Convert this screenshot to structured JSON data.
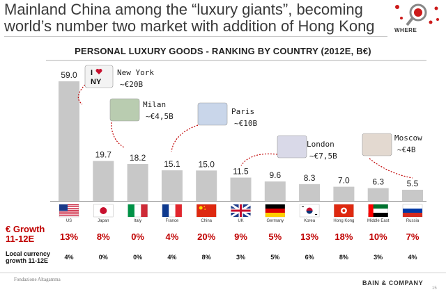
{
  "headline": "Mainland China among the “luxury giants”, becoming world’s number two market with addition of Hong Kong",
  "where_label": "WHERE",
  "labels": {
    "growth": "€ Growth 11-12E",
    "local_growth": "Local currency growth 11-12E"
  },
  "footer": {
    "foundation": "Fondazione Altagamma",
    "bain": "BAIN & COMPANY",
    "page": "15"
  },
  "colors": {
    "bar": "#c8c8c8",
    "accent_red": "#c00000",
    "callout_line": "#c00000"
  },
  "callouts": [
    {
      "city": "New York",
      "amount": "~€20B",
      "image": "i-love-ny-logo"
    },
    {
      "city": "Milan",
      "amount": "~€4,5B",
      "image": "italian-flag-cake"
    },
    {
      "city": "Paris",
      "amount": "~€10B",
      "image": "paris-eiffel-flag"
    },
    {
      "city": "London",
      "amount": "~€7,5B",
      "image": "union-jack-cupcakes"
    },
    {
      "city": "Moscow",
      "amount": "~€4B",
      "image": "matryoshka-doll"
    }
  ],
  "chart_data": {
    "type": "bar",
    "title": "PERSONAL LUXURY GOODS - RANKING BY COUNTRY (2012E, B€)",
    "categories": [
      "US",
      "Japan",
      "Italy",
      "France",
      "China",
      "UK",
      "Germany",
      "Korea",
      "Hong Kong",
      "Middle East",
      "Russia"
    ],
    "values": [
      59.0,
      19.7,
      18.2,
      15.1,
      15.0,
      11.5,
      9.6,
      8.3,
      7.0,
      6.3,
      5.5
    ],
    "value_labels": [
      "59.0",
      "19.7",
      "18.2",
      "15.1",
      "15.0",
      "11.5",
      "9.6",
      "8.3",
      "7.0",
      "6.3",
      "5.5"
    ],
    "flags": [
      "us-flag",
      "japan-flag",
      "italy-flag",
      "france-flag",
      "china-flag",
      "uk-flag",
      "germany-flag",
      "korea-flag",
      "hong-kong-flag",
      "uae-flag",
      "russia-flag"
    ],
    "euro_growth": [
      "13%",
      "8%",
      "0%",
      "4%",
      "20%",
      "9%",
      "5%",
      "13%",
      "18%",
      "10%",
      "7%"
    ],
    "local_currency_growth": [
      "4%",
      "0%",
      "0%",
      "4%",
      "8%",
      "3%",
      "5%",
      "6%",
      "8%",
      "3%",
      "4%"
    ],
    "ylim": [
      0,
      60
    ],
    "grid": false,
    "legend": "none"
  }
}
